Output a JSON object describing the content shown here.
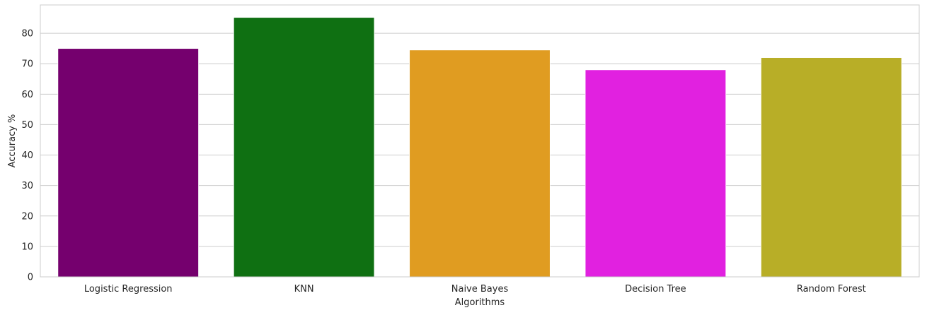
{
  "chart_data": {
    "type": "bar",
    "title": "",
    "xlabel": "Algorithms",
    "ylabel": "Accuracy %",
    "categories": [
      "Logistic Regression",
      "KNN",
      "Naive Bayes",
      "Decision Tree",
      "Random Forest"
    ],
    "values": [
      75.0,
      85.2,
      74.5,
      68.0,
      72.0
    ],
    "colors": [
      "#75006e",
      "#0f7012",
      "#e09c21",
      "#e121e0",
      "#b8ae27"
    ],
    "ylim": [
      0,
      89.3
    ],
    "yticks": [
      0,
      10,
      20,
      30,
      40,
      50,
      60,
      70,
      80
    ],
    "grid": true,
    "legend": "none"
  }
}
